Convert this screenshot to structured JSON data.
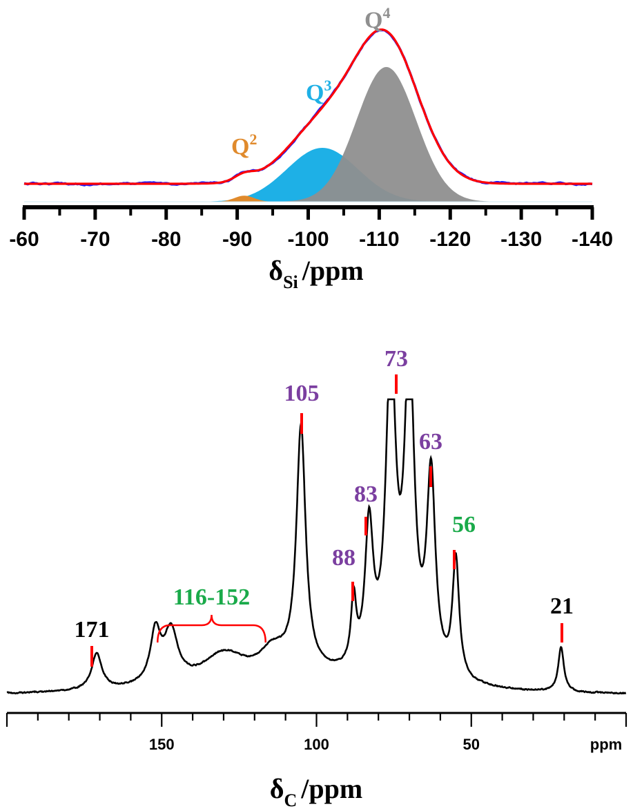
{
  "colors": {
    "q2": "#e08a2c",
    "q3": "#1eb0e6",
    "q4": "#8f8f8f",
    "fit": "#ff0000",
    "experimental": "#1a1aff",
    "purple": "#7b3fa0",
    "green": "#1aaa4a",
    "black": "#000000",
    "marker": "#ff0000"
  },
  "chart_data": [
    {
      "type": "line",
      "title": "",
      "xlabel": "δSi /ppm",
      "xlabel_main": "δ",
      "xlabel_sub": "Si",
      "xlabel_unit": "/ppm",
      "xlim": [
        -60,
        -140
      ],
      "xticks": [
        -60,
        -70,
        -80,
        -90,
        -100,
        -110,
        -120,
        -130,
        -140
      ],
      "grid": false,
      "components": [
        {
          "name": "Q",
          "sup": "2",
          "center": -91,
          "width": 1.4,
          "amplitude": 0.045,
          "color_key": "q2"
        },
        {
          "name": "Q",
          "sup": "3",
          "center": -102,
          "width": 5.0,
          "amplitude": 0.4,
          "color_key": "q3"
        },
        {
          "name": "Q",
          "sup": "4",
          "center": -111,
          "width": 4.2,
          "amplitude": 1.0,
          "color_key": "q4"
        }
      ],
      "series": [
        {
          "color_key": "experimental"
        },
        {
          "color_key": "fit"
        }
      ]
    },
    {
      "type": "line",
      "title": "",
      "xlabel": "δC /ppm",
      "xlabel_main": "δ",
      "xlabel_sub": "C",
      "xlabel_unit": "/ppm",
      "xlim": [
        200,
        0
      ],
      "xticks": [
        150,
        100,
        50
      ],
      "xticks_minor_step": 10,
      "unit_label": "ppm",
      "grid": false,
      "peaks": [
        {
          "ppm": 171,
          "height": 0.12,
          "width": 2.0
        },
        {
          "ppm": 152,
          "height": 0.17,
          "width": 2.0
        },
        {
          "ppm": 147,
          "height": 0.17,
          "width": 2.6
        },
        {
          "ppm": 130,
          "height": 0.09,
          "width": 8.0
        },
        {
          "ppm": 114,
          "height": 0.08,
          "width": 5.0
        },
        {
          "ppm": 105,
          "height": 0.82,
          "width": 1.8
        },
        {
          "ppm": 88,
          "height": 0.22,
          "width": 1.0
        },
        {
          "ppm": 83,
          "height": 0.47,
          "width": 1.6
        },
        {
          "ppm": 76,
          "height": 1.05,
          "width": 1.9
        },
        {
          "ppm": 70,
          "height": 1.05,
          "width": 1.9
        },
        {
          "ppm": 63,
          "height": 0.66,
          "width": 1.7
        },
        {
          "ppm": 55,
          "height": 0.4,
          "width": 1.3
        },
        {
          "ppm": 21,
          "height": 0.15,
          "width": 1.1
        }
      ],
      "labels": [
        {
          "text": "171",
          "ppm": 171,
          "color_key": "black"
        },
        {
          "text": "116-152",
          "ppm_range": [
            152,
            116
          ],
          "color_key": "green"
        },
        {
          "text": "105",
          "ppm": 105,
          "color_key": "purple"
        },
        {
          "text": "88",
          "ppm": 88,
          "color_key": "purple"
        },
        {
          "text": "83",
          "ppm": 83,
          "color_key": "purple"
        },
        {
          "text": "73",
          "ppm": 73,
          "color_key": "purple"
        },
        {
          "text": "63",
          "ppm": 63,
          "color_key": "purple"
        },
        {
          "text": "56",
          "ppm": 56,
          "color_key": "green"
        },
        {
          "text": "21",
          "ppm": 21,
          "color_key": "black"
        }
      ]
    }
  ]
}
